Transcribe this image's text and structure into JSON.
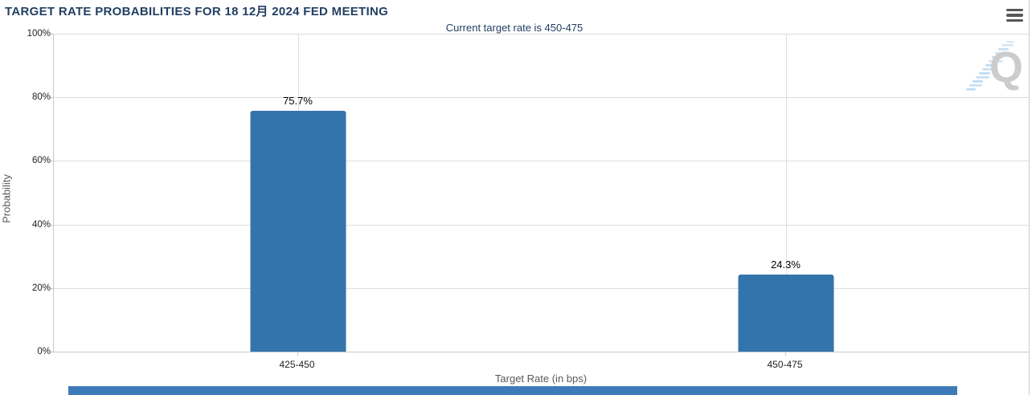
{
  "header": {
    "title": "TARGET RATE PROBABILITIES FOR 18 12月 2024 FED MEETING",
    "menu_icon": "hamburger-menu-icon"
  },
  "watermark": {
    "letter": "Q"
  },
  "colors": {
    "bar": "#3474ad",
    "title_text": "#223f63",
    "grid": "#dddddd",
    "axis_line": "#c8c8c8",
    "tick_text": "#222222",
    "axis_title_text": "#595959",
    "bottom_strip": "#3d7bb8",
    "menu_icon": "#57585a",
    "watermark_gray": "#cccccc",
    "watermark_blue": "#aed1ee"
  },
  "chart_data": {
    "type": "bar",
    "title": "TARGET RATE PROBABILITIES FOR 18 12月 2024 FED MEETING",
    "subtitle": "Current target rate is 450-475",
    "categories": [
      "425-450",
      "450-475"
    ],
    "values": [
      75.7,
      24.3
    ],
    "value_labels": [
      "75.7%",
      "24.3%"
    ],
    "xlabel": "Target Rate (in bps)",
    "ylabel": "Probability",
    "ylim": [
      0,
      100
    ],
    "yticks": [
      0,
      20,
      40,
      60,
      80,
      100
    ],
    "ytick_labels": [
      "0%",
      "20%",
      "40%",
      "60%",
      "80%",
      "100%"
    ],
    "bar_centers_pct": [
      25,
      75
    ],
    "grid": true,
    "legend": false,
    "bar_color": "#3474ad"
  }
}
